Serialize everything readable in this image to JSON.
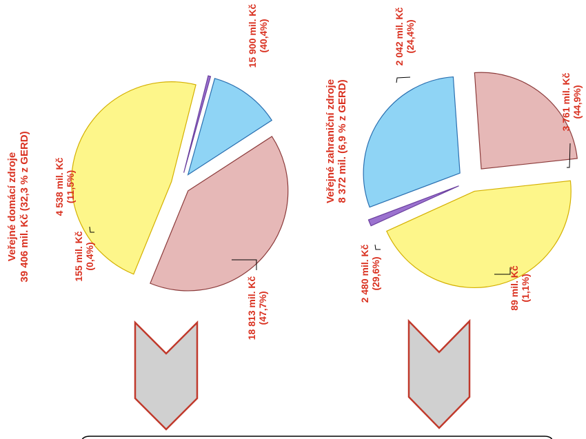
{
  "charts": [
    {
      "title_line1": "Veřejné domácí zdroje",
      "title_line2": "39 406 mil. Kč (32,3 % z GERD)"
    },
    {
      "title_line1": "Veřejné zahraniční zdroje",
      "title_line2": "8 372 mil. (6,9 % z GERD)"
    }
  ],
  "chart_data": [
    {
      "type": "pie",
      "title": "Veřejné domácí zdroje 39 406 mil. Kč (32,3 % z GERD)",
      "slices": [
        {
          "value": 15900,
          "label": "15 900 mil. Kč",
          "percent": "(40,4%)",
          "color": "#e6b8b7"
        },
        {
          "value": 18813,
          "label": "18 813 mil. Kč",
          "percent": "(47,7%)",
          "color": "#fdf68a"
        },
        {
          "value": 155,
          "label": "155 mil. Kč",
          "percent": "(0,4%)",
          "color": "#9b72cf"
        },
        {
          "value": 4538,
          "label": "4 538 mil. Kč",
          "percent": "(11,5%)",
          "color": "#8fd4f5"
        }
      ]
    },
    {
      "type": "pie",
      "title": "Veřejné zahraniční zdroje 8 372 mil. (6,9 % z GERD)",
      "slices": [
        {
          "value": 2042,
          "label": "2 042 mil. Kč",
          "percent": "(24,4%)",
          "color": "#e6b8b7"
        },
        {
          "value": 3761,
          "label": "3 761 mil. Kč",
          "percent": "(44,9%)",
          "color": "#fdf68a"
        },
        {
          "value": 89,
          "label": "89 mil. Kč",
          "percent": "(1,1%)",
          "color": "#9b72cf"
        },
        {
          "value": 2480,
          "label": "2 480 mil. Kč",
          "percent": "(29,6%)",
          "color": "#8fd4f5"
        }
      ]
    }
  ],
  "colors": {
    "label_text": "#d9301f",
    "arrow_fill": "#d0d0d0",
    "arrow_stroke": "#c0392b",
    "slice_stroke_pink": "#8b3a3a",
    "slice_stroke_yellow": "#d4b000",
    "slice_stroke_blue": "#2a6fb0",
    "slice_stroke_purple": "#6a3f9e"
  },
  "icons": [
    "down-chevron-arrow-icon",
    "down-chevron-arrow-icon"
  ]
}
